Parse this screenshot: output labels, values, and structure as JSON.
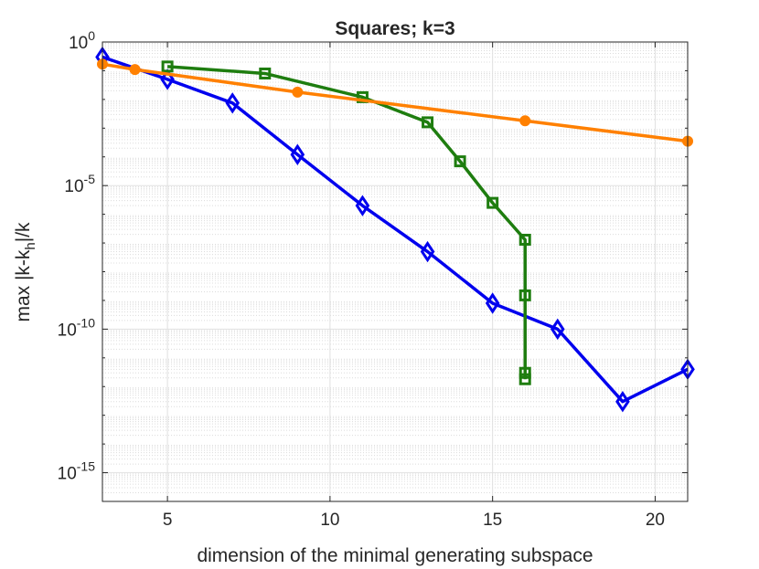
{
  "chart_data": {
    "type": "line",
    "title": "Squares; k=3",
    "xlabel": "dimension of the minimal generating subspace",
    "ylabel": {
      "pre": "max |k-k",
      "sub": "h",
      "post": "|/k"
    },
    "x_scale": "linear",
    "y_scale": "log",
    "xlim": [
      3,
      21
    ],
    "ylim": [
      1e-16,
      1
    ],
    "x_ticks": [
      5,
      10,
      15,
      20
    ],
    "x_tick_labels": [
      "5",
      "10",
      "15",
      "20"
    ],
    "y_ticks": [
      1e-15,
      1e-10,
      1e-05,
      1
    ],
    "y_tick_labels": [
      {
        "base": "10",
        "exp": "-15"
      },
      {
        "base": "10",
        "exp": "-10"
      },
      {
        "base": "10",
        "exp": "-5"
      },
      {
        "base": "10",
        "exp": "0"
      }
    ],
    "grid": true,
    "legend": "none",
    "series": [
      {
        "color": "#0000ee",
        "marker": "diamond",
        "x": [
          3,
          5,
          7,
          9,
          11,
          13,
          15,
          17,
          19,
          21
        ],
        "y": [
          0.3,
          0.05,
          0.0075,
          0.00012,
          2e-06,
          5e-08,
          8e-10,
          1e-10,
          3e-13,
          4e-12
        ]
      },
      {
        "color": "#1e7d0f",
        "marker": "square",
        "x": [
          5,
          8,
          11,
          13,
          14,
          15,
          16,
          16,
          16,
          16
        ],
        "y": [
          0.14,
          0.08,
          0.012,
          0.0016,
          7e-05,
          2.5e-06,
          1.3e-07,
          1.5e-09,
          3e-12,
          1.8e-12
        ]
      },
      {
        "color": "#ff8000",
        "marker": "circle",
        "x": [
          3,
          4,
          9,
          16,
          21
        ],
        "y": [
          0.17,
          0.11,
          0.018,
          0.0018,
          0.00035
        ]
      }
    ]
  }
}
